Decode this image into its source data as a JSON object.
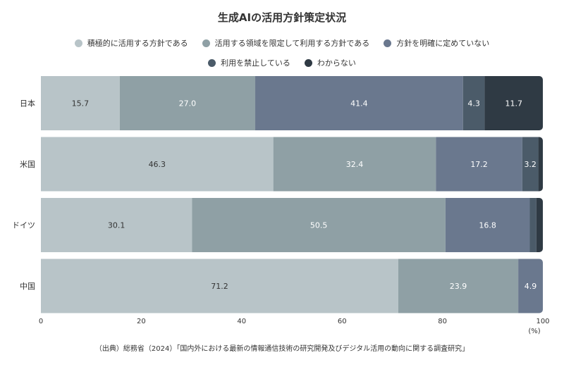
{
  "chart_data": {
    "type": "bar",
    "orientation": "horizontal-stacked",
    "title": "生成AIの活用方針策定状況",
    "categories": [
      "日本",
      "米国",
      "ドイツ",
      "中国"
    ],
    "series": [
      {
        "name": "積極的に活用する方針である",
        "color": "#b8c4c8",
        "values": [
          15.7,
          46.3,
          30.1,
          71.2
        ],
        "labels": [
          "15.7",
          "46.3",
          "30.1",
          "71.2"
        ]
      },
      {
        "name": "活用する領域を限定して利用する方針である",
        "color": "#8fa0a5",
        "values": [
          27.0,
          32.4,
          50.5,
          23.9
        ],
        "labels": [
          "27.0",
          "32.4",
          "50.5",
          "23.9"
        ]
      },
      {
        "name": "方針を明確に定めていない",
        "color": "#6a788e",
        "values": [
          41.4,
          17.2,
          16.8,
          4.9
        ],
        "labels": [
          "41.4",
          "17.2",
          "16.8",
          "4.9"
        ]
      },
      {
        "name": "利用を禁止している",
        "color": "#4b5b69",
        "values": [
          4.3,
          3.2,
          1.3,
          0
        ],
        "labels": [
          "4.3",
          "3.2",
          "",
          ""
        ]
      },
      {
        "name": "わからない",
        "color": "#2f3a44",
        "values": [
          11.7,
          0.9,
          1.3,
          0
        ],
        "labels": [
          "11.7",
          "",
          "",
          ""
        ]
      }
    ],
    "xlim": [
      0,
      100
    ],
    "xticks": [
      "0",
      "20",
      "40",
      "60",
      "80",
      "100"
    ],
    "xunit": "(%)",
    "grid": false,
    "legend_position": "top"
  },
  "source": "（出典）総務省（2024）「国内外における最新の情報通信技術の研究開発及びデジタル活用の動向に関する調査研究」"
}
